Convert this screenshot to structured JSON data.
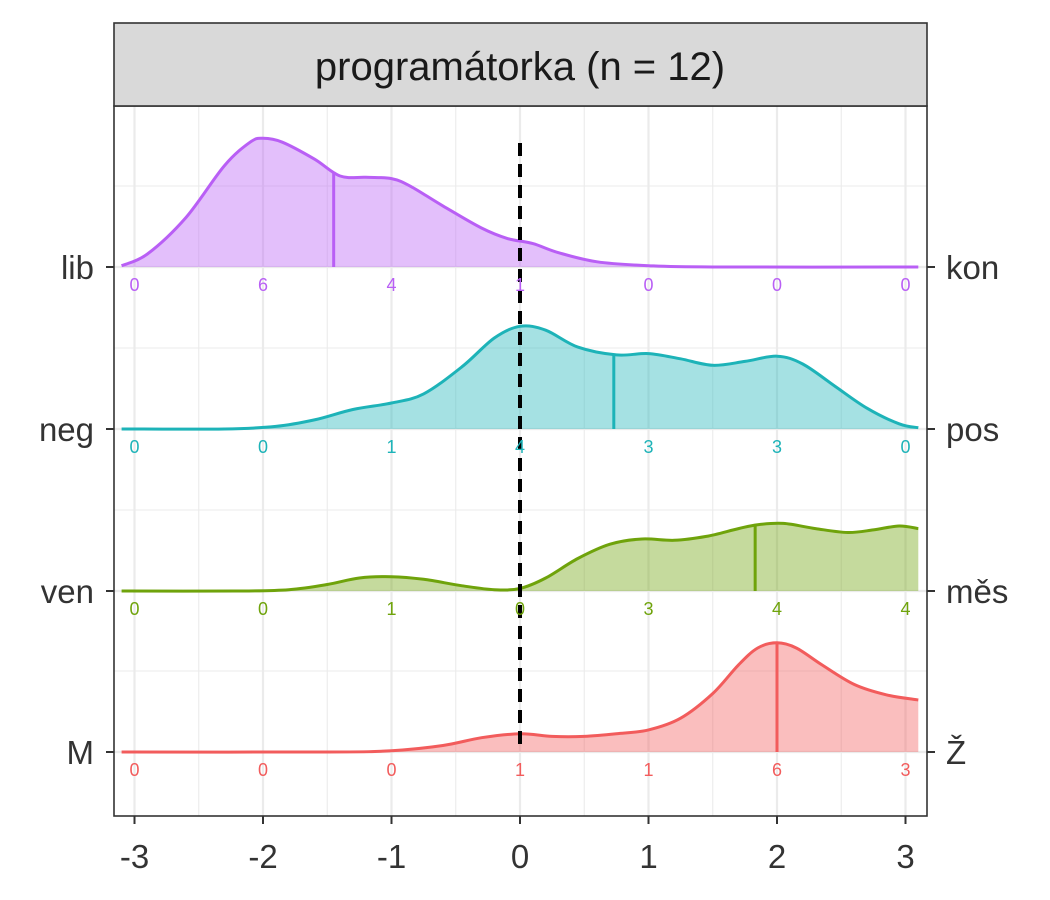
{
  "chart_data": {
    "type": "ridgeline",
    "panel_title": "programátorka (n = 12)",
    "xlim": [
      -3.1,
      3.1
    ],
    "x_ticks": [
      "-3",
      "-2",
      "-1",
      "0",
      "1",
      "2",
      "3"
    ],
    "x_tick_values": [
      -3,
      -2,
      -1,
      0,
      1,
      2,
      3
    ],
    "reference_line_x": 0,
    "grid": true,
    "count_positions": [
      -3,
      -2,
      -1,
      0,
      1,
      2,
      3
    ],
    "series": [
      {
        "left_label": "lib",
        "right_label": "kon",
        "color": "#B95FF5",
        "mean": -1.45,
        "counts": [
          "0",
          "6",
          "4",
          "1",
          "0",
          "0",
          "0"
        ],
        "density": [
          [
            -3.1,
            0.01
          ],
          [
            -2.9,
            0.1
          ],
          [
            -2.6,
            0.38
          ],
          [
            -2.3,
            0.78
          ],
          [
            -2.1,
            0.96
          ],
          [
            -2.0,
            0.99
          ],
          [
            -1.85,
            0.96
          ],
          [
            -1.6,
            0.83
          ],
          [
            -1.4,
            0.7
          ],
          [
            -1.2,
            0.69
          ],
          [
            -1.0,
            0.68
          ],
          [
            -0.85,
            0.62
          ],
          [
            -0.6,
            0.47
          ],
          [
            -0.3,
            0.3
          ],
          [
            -0.1,
            0.22
          ],
          [
            0.1,
            0.18
          ],
          [
            0.3,
            0.11
          ],
          [
            0.6,
            0.04
          ],
          [
            1.0,
            0.01
          ],
          [
            1.5,
            0.0
          ],
          [
            3.1,
            0.0
          ]
        ]
      },
      {
        "left_label": "neg",
        "right_label": "pos",
        "color": "#1DB3B8",
        "mean": 0.73,
        "counts": [
          "0",
          "0",
          "1",
          "4",
          "3",
          "3",
          "0"
        ],
        "density": [
          [
            -3.1,
            0.0
          ],
          [
            -2.3,
            0.0
          ],
          [
            -1.9,
            0.02
          ],
          [
            -1.6,
            0.07
          ],
          [
            -1.3,
            0.15
          ],
          [
            -1.0,
            0.2
          ],
          [
            -0.75,
            0.27
          ],
          [
            -0.45,
            0.48
          ],
          [
            -0.2,
            0.7
          ],
          [
            0.0,
            0.79
          ],
          [
            0.2,
            0.76
          ],
          [
            0.45,
            0.63
          ],
          [
            0.75,
            0.57
          ],
          [
            1.0,
            0.58
          ],
          [
            1.25,
            0.54
          ],
          [
            1.5,
            0.49
          ],
          [
            1.75,
            0.52
          ],
          [
            2.0,
            0.56
          ],
          [
            2.2,
            0.5
          ],
          [
            2.45,
            0.33
          ],
          [
            2.7,
            0.16
          ],
          [
            2.95,
            0.04
          ],
          [
            3.1,
            0.01
          ]
        ]
      },
      {
        "left_label": "ven",
        "right_label": "měs",
        "color": "#6FA30B",
        "mean": 1.83,
        "counts": [
          "0",
          "0",
          "1",
          "0",
          "3",
          "4",
          "4"
        ],
        "density": [
          [
            -3.1,
            0.0
          ],
          [
            -2.2,
            0.0
          ],
          [
            -1.8,
            0.01
          ],
          [
            -1.5,
            0.05
          ],
          [
            -1.25,
            0.1
          ],
          [
            -1.0,
            0.11
          ],
          [
            -0.75,
            0.09
          ],
          [
            -0.45,
            0.04
          ],
          [
            -0.2,
            0.01
          ],
          [
            0.0,
            0.02
          ],
          [
            0.2,
            0.1
          ],
          [
            0.45,
            0.25
          ],
          [
            0.7,
            0.36
          ],
          [
            0.95,
            0.4
          ],
          [
            1.2,
            0.39
          ],
          [
            1.45,
            0.42
          ],
          [
            1.7,
            0.48
          ],
          [
            1.85,
            0.51
          ],
          [
            2.05,
            0.52
          ],
          [
            2.3,
            0.48
          ],
          [
            2.55,
            0.45
          ],
          [
            2.75,
            0.47
          ],
          [
            2.95,
            0.5
          ],
          [
            3.1,
            0.48
          ]
        ]
      },
      {
        "left_label": "M",
        "right_label": "Ž",
        "color": "#F25C5C",
        "mean": 2.0,
        "counts": [
          "0",
          "0",
          "0",
          "1",
          "1",
          "6",
          "3"
        ],
        "density": [
          [
            -3.1,
            0.0
          ],
          [
            -1.5,
            0.0
          ],
          [
            -1.0,
            0.01
          ],
          [
            -0.6,
            0.05
          ],
          [
            -0.3,
            0.11
          ],
          [
            0.0,
            0.14
          ],
          [
            0.25,
            0.12
          ],
          [
            0.5,
            0.12
          ],
          [
            0.75,
            0.14
          ],
          [
            1.0,
            0.17
          ],
          [
            1.25,
            0.26
          ],
          [
            1.5,
            0.45
          ],
          [
            1.7,
            0.67
          ],
          [
            1.85,
            0.8
          ],
          [
            2.0,
            0.84
          ],
          [
            2.15,
            0.8
          ],
          [
            2.35,
            0.67
          ],
          [
            2.6,
            0.52
          ],
          [
            2.85,
            0.44
          ],
          [
            3.1,
            0.4
          ]
        ]
      }
    ]
  }
}
